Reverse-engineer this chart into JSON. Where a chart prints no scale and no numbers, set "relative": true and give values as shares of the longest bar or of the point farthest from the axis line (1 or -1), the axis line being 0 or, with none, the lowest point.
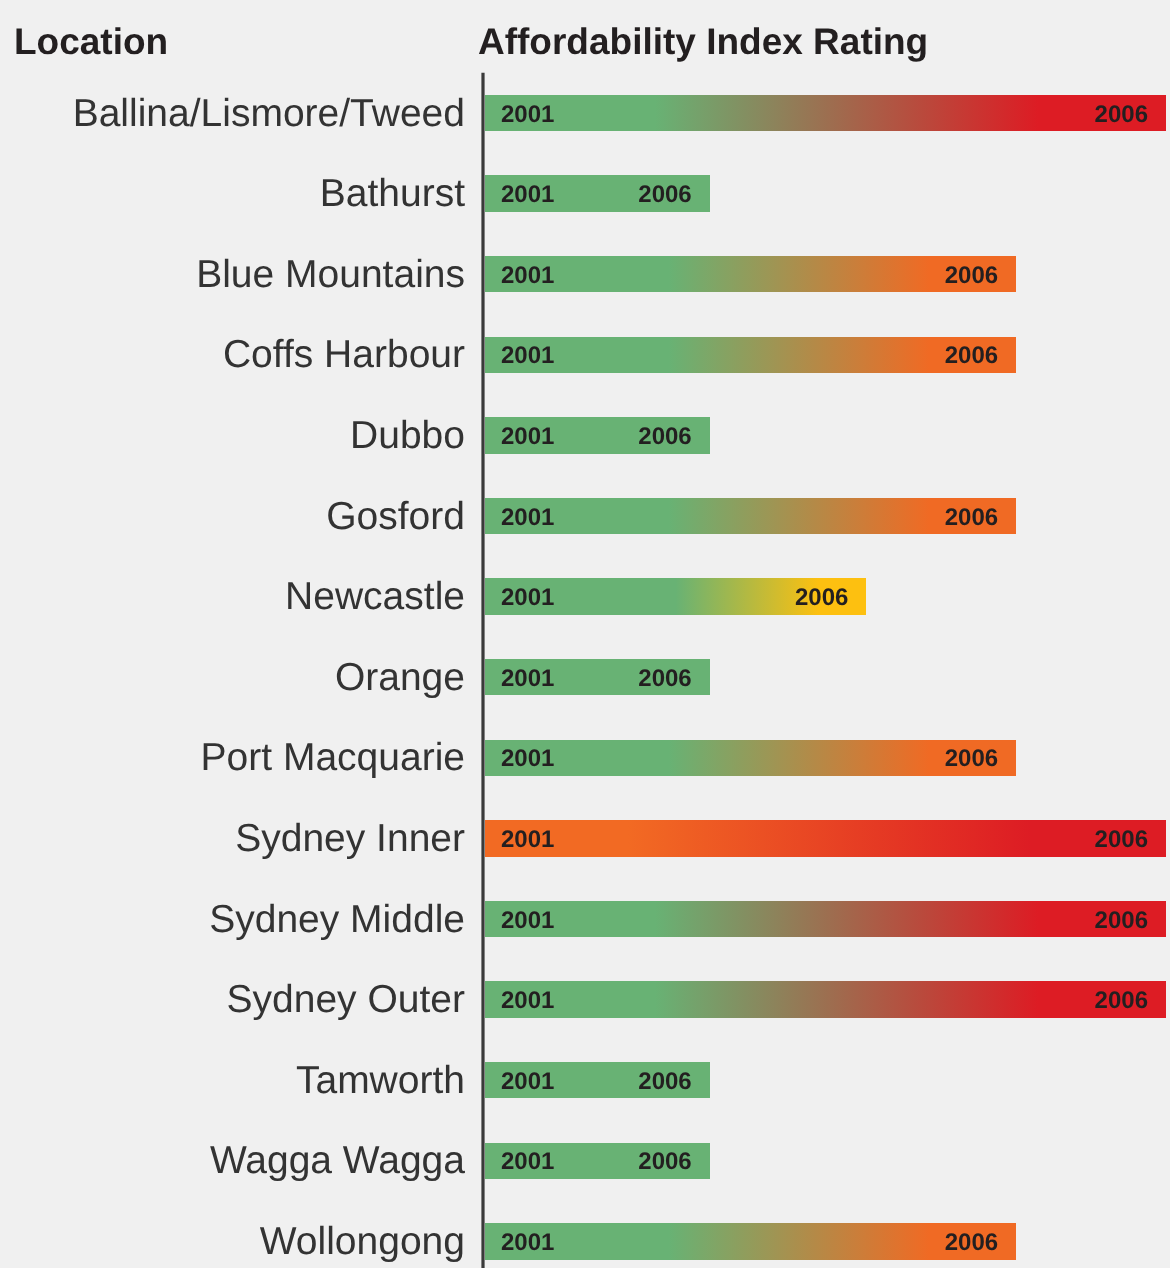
{
  "chart_data": {
    "type": "bar",
    "orientation": "horizontal",
    "stacked": true,
    "relative": true,
    "ylabel": "Location",
    "xlabel": "Affordability Index Rating",
    "categories": [
      "Ballina/Lismore/Tweed",
      "Bathurst",
      "Blue Mountains",
      "Coffs Harbour",
      "Dubbo",
      "Gosford",
      "Newcastle",
      "Orange",
      "Port Macquarie",
      "Sydney Inner",
      "Sydney Middle",
      "Sydney Outer",
      "Tamworth",
      "Wagga Wagga",
      "Wollongong"
    ],
    "series": [
      {
        "name": "2001",
        "values": [
          0.25,
          0.17,
          0.27,
          0.27,
          0.17,
          0.27,
          0.28,
          0.17,
          0.27,
          0.21,
          0.25,
          0.25,
          0.17,
          0.17,
          0.27
        ],
        "colors": [
          "#68b274",
          "#68b274",
          "#68b274",
          "#68b274",
          "#68b274",
          "#68b274",
          "#68b274",
          "#68b274",
          "#68b274",
          "#f26a23",
          "#68b274",
          "#68b274",
          "#68b274",
          "#68b274",
          "#68b274"
        ]
      },
      {
        "name": "2006",
        "values": [
          0.75,
          0.16,
          0.51,
          0.51,
          0.16,
          0.51,
          0.28,
          0.16,
          0.51,
          0.79,
          0.75,
          0.75,
          0.16,
          0.16,
          0.51
        ],
        "colors": [
          "#dd1c24",
          "#68b274",
          "#f06a24",
          "#f06a24",
          "#68b274",
          "#f06a24",
          "#fdc010",
          "#68b274",
          "#f06a24",
          "#dd1c24",
          "#dd1c24",
          "#dd1c24",
          "#68b274",
          "#68b274",
          "#f06a24"
        ]
      }
    ]
  }
}
